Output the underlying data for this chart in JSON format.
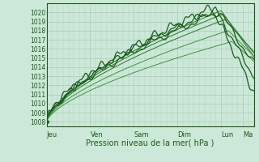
{
  "title": "",
  "xlabel": "Pression niveau de la mer( hPa )",
  "ylabel": "",
  "bg_color": "#cce8d8",
  "grid_color": "#aacaba",
  "line_color_dark": "#1a5c1a",
  "line_color_med": "#2a762a",
  "line_color_light": "#3a963a",
  "ylim": [
    1007.5,
    1021.0
  ],
  "yticks": [
    1008,
    1009,
    1010,
    1011,
    1012,
    1013,
    1014,
    1015,
    1016,
    1017,
    1018,
    1019,
    1020
  ],
  "day_labels": [
    "Jeu",
    "Ven",
    "Sam",
    "Dim",
    "Lun",
    "Ma"
  ],
  "day_positions": [
    0,
    24,
    48,
    72,
    96,
    108
  ],
  "xlim": [
    0,
    114
  ],
  "n_points": 300
}
